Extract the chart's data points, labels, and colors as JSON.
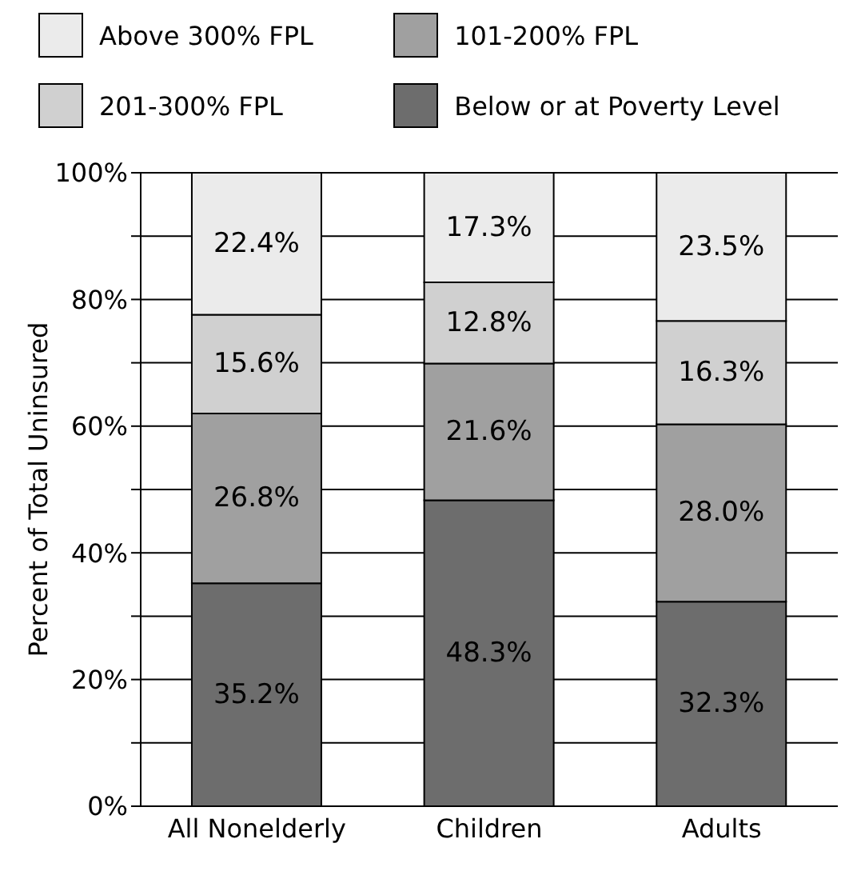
{
  "chart_data": {
    "type": "bar",
    "stacked": true,
    "ylabel": "Percent of Total Uninsured",
    "categories": [
      "All Nonelderly",
      "Children",
      "Adults"
    ],
    "series": [
      {
        "name": "Below or at Poverty Level",
        "color": "#6d6d6d",
        "values": [
          35.2,
          48.3,
          32.3
        ]
      },
      {
        "name": "101-200% FPL",
        "color": "#a0a0a0",
        "values": [
          26.8,
          21.6,
          28.0
        ]
      },
      {
        "name": "201-300% FPL",
        "color": "#d0d0d0",
        "values": [
          15.6,
          12.8,
          16.3
        ]
      },
      {
        "name": "Above 300% FPL",
        "color": "#ebebeb",
        "values": [
          22.4,
          17.3,
          23.5
        ]
      }
    ],
    "value_labels": [
      [
        "35.2%",
        "48.3%",
        "32.3%"
      ],
      [
        "26.8%",
        "21.6%",
        "28.0%"
      ],
      [
        "15.6%",
        "12.8%",
        "16.3%"
      ],
      [
        "22.4%",
        "17.3%",
        "23.5%"
      ]
    ],
    "ylim": [
      0,
      100
    ],
    "yticks": [
      {
        "value": 0,
        "label": "0%"
      },
      {
        "value": 10,
        "label": null
      },
      {
        "value": 20,
        "label": "20%"
      },
      {
        "value": 30,
        "label": null
      },
      {
        "value": 40,
        "label": "40%"
      },
      {
        "value": 50,
        "label": null
      },
      {
        "value": 60,
        "label": "60%"
      },
      {
        "value": 70,
        "label": null
      },
      {
        "value": 80,
        "label": "80%"
      },
      {
        "value": 90,
        "label": null
      },
      {
        "value": 100,
        "label": "100%"
      }
    ],
    "grid": "y",
    "legend": "top"
  }
}
